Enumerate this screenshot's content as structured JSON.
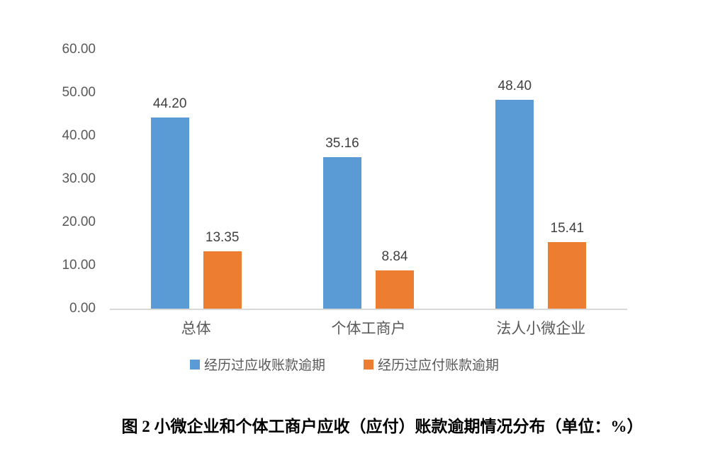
{
  "chart_data": {
    "type": "bar",
    "categories": [
      "总体",
      "个体工商户",
      "法人小微企业"
    ],
    "series": [
      {
        "key": "receivable-overdue",
        "name": "经历过应收账款逾期",
        "color": "#5B9BD5",
        "values": [
          44.2,
          35.16,
          48.4
        ],
        "labels": [
          "44.20",
          "35.16",
          "48.40"
        ]
      },
      {
        "key": "payable-overdue",
        "name": "经历过应付账款逾期",
        "color": "#ED7D31",
        "values": [
          13.35,
          8.84,
          15.41
        ],
        "labels": [
          "13.35",
          "8.84",
          "15.41"
        ]
      }
    ],
    "title": "",
    "xlabel": "",
    "ylabel": "",
    "ylim": [
      0,
      60
    ],
    "yticks": [
      "0.00",
      "10.00",
      "20.00",
      "30.00",
      "40.00",
      "50.00",
      "60.00"
    ],
    "grid": false,
    "legend_position": "bottom",
    "axis_line_color": "#d9d9d9"
  },
  "caption": "图 2 小微企业和个体工商户应收（应付）账款逾期情况分布（单位：%）"
}
